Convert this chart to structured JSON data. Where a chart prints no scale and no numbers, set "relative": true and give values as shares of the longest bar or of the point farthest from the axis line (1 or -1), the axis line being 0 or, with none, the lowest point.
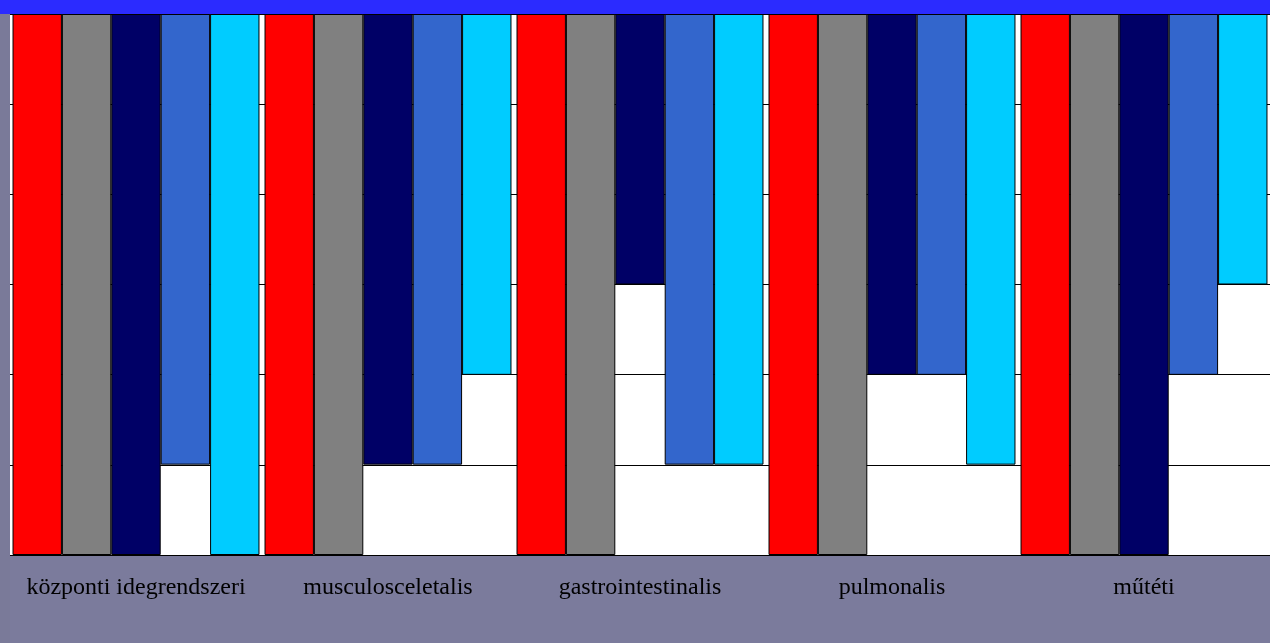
{
  "chart_data": {
    "type": "bar",
    "relative": true,
    "grid": "y",
    "categories": [
      "központi idegrendszeri",
      "musculosceletalis",
      "gastrointestinalis",
      "pulmonalis",
      "műtéti"
    ],
    "series": [
      {
        "color": "#ff0000",
        "values": [
          -1,
          -1,
          -1,
          -1,
          -1
        ]
      },
      {
        "color": "#808080",
        "values": [
          -1,
          -1,
          -1,
          -1,
          -1
        ]
      },
      {
        "color": "#000066",
        "values": [
          -1,
          -0.833,
          -0.5,
          -0.667,
          -1
        ]
      },
      {
        "color": "#3366cc",
        "values": [
          -0.833,
          -0.833,
          -0.833,
          -0.667,
          -0.667
        ]
      },
      {
        "color": "#00ccff",
        "values": [
          -1,
          -0.667,
          -0.833,
          -0.833,
          -0.5
        ]
      }
    ]
  }
}
